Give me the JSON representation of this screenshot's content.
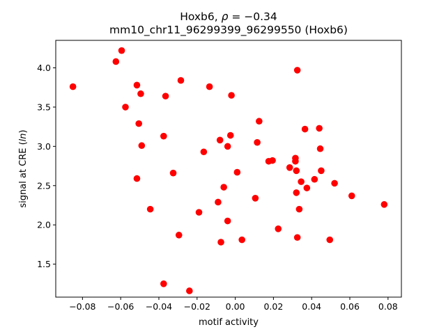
{
  "chart_data": {
    "type": "scatter",
    "title_line1": "Hoxb6, ",
    "title_rho_symbol": "ρ",
    "title_rho_value": " = −0.34",
    "title_line2": "mm10_chr11_96299399_96299550 (Hoxb6)",
    "xlabel": "motif activity",
    "ylabel_prefix": "signal at CRE (",
    "ylabel_ln": "ln",
    "ylabel_suffix": ")",
    "xlim": [
      -0.094,
      0.087
    ],
    "ylim": [
      1.08,
      4.35
    ],
    "x_ticks": [
      -0.08,
      -0.06,
      -0.04,
      -0.02,
      0.0,
      0.02,
      0.04,
      0.06,
      0.08
    ],
    "x_tick_labels": [
      "−0.08",
      "−0.06",
      "−0.04",
      "−0.02",
      "0.00",
      "0.02",
      "0.04",
      "0.06",
      "0.08"
    ],
    "y_ticks": [
      1.5,
      2.0,
      2.5,
      3.0,
      3.5,
      4.0
    ],
    "y_tick_labels": [
      "1.5",
      "2.0",
      "2.5",
      "3.0",
      "3.5",
      "4.0"
    ],
    "grid": false,
    "marker_color": "#ff0000",
    "points": [
      {
        "x": -0.085,
        "y": 3.76
      },
      {
        "x": -0.0625,
        "y": 4.08
      },
      {
        "x": -0.0595,
        "y": 4.22
      },
      {
        "x": -0.0575,
        "y": 3.5
      },
      {
        "x": -0.0515,
        "y": 3.78
      },
      {
        "x": -0.0515,
        "y": 2.59
      },
      {
        "x": -0.0505,
        "y": 3.29
      },
      {
        "x": -0.0495,
        "y": 3.67
      },
      {
        "x": -0.049,
        "y": 3.01
      },
      {
        "x": -0.0445,
        "y": 2.2
      },
      {
        "x": -0.0375,
        "y": 3.13
      },
      {
        "x": -0.0375,
        "y": 1.25
      },
      {
        "x": -0.0365,
        "y": 3.64
      },
      {
        "x": -0.0325,
        "y": 2.66
      },
      {
        "x": -0.0295,
        "y": 1.87
      },
      {
        "x": -0.0285,
        "y": 3.84
      },
      {
        "x": -0.024,
        "y": 1.16
      },
      {
        "x": -0.019,
        "y": 2.16
      },
      {
        "x": -0.0165,
        "y": 2.93
      },
      {
        "x": -0.0135,
        "y": 3.76
      },
      {
        "x": -0.009,
        "y": 2.29
      },
      {
        "x": -0.008,
        "y": 3.08
      },
      {
        "x": -0.0075,
        "y": 1.78
      },
      {
        "x": -0.006,
        "y": 2.48
      },
      {
        "x": -0.004,
        "y": 3.0
      },
      {
        "x": -0.004,
        "y": 2.05
      },
      {
        "x": -0.0025,
        "y": 3.14
      },
      {
        "x": -0.002,
        "y": 3.65
      },
      {
        "x": 0.001,
        "y": 2.67
      },
      {
        "x": 0.0035,
        "y": 1.81
      },
      {
        "x": 0.0105,
        "y": 2.34
      },
      {
        "x": 0.0115,
        "y": 3.05
      },
      {
        "x": 0.0125,
        "y": 3.32
      },
      {
        "x": 0.0175,
        "y": 2.81
      },
      {
        "x": 0.0195,
        "y": 2.82
      },
      {
        "x": 0.0225,
        "y": 1.95
      },
      {
        "x": 0.0285,
        "y": 2.73
      },
      {
        "x": 0.0315,
        "y": 2.85
      },
      {
        "x": 0.0315,
        "y": 2.81
      },
      {
        "x": 0.032,
        "y": 2.69
      },
      {
        "x": 0.032,
        "y": 2.41
      },
      {
        "x": 0.0325,
        "y": 3.97
      },
      {
        "x": 0.0325,
        "y": 1.84
      },
      {
        "x": 0.0335,
        "y": 2.2
      },
      {
        "x": 0.0345,
        "y": 2.55
      },
      {
        "x": 0.0365,
        "y": 3.22
      },
      {
        "x": 0.0375,
        "y": 2.47
      },
      {
        "x": 0.0415,
        "y": 2.58
      },
      {
        "x": 0.044,
        "y": 3.23
      },
      {
        "x": 0.0445,
        "y": 2.97
      },
      {
        "x": 0.045,
        "y": 2.69
      },
      {
        "x": 0.0495,
        "y": 1.81
      },
      {
        "x": 0.052,
        "y": 2.53
      },
      {
        "x": 0.061,
        "y": 2.37
      },
      {
        "x": 0.078,
        "y": 2.26
      }
    ]
  }
}
